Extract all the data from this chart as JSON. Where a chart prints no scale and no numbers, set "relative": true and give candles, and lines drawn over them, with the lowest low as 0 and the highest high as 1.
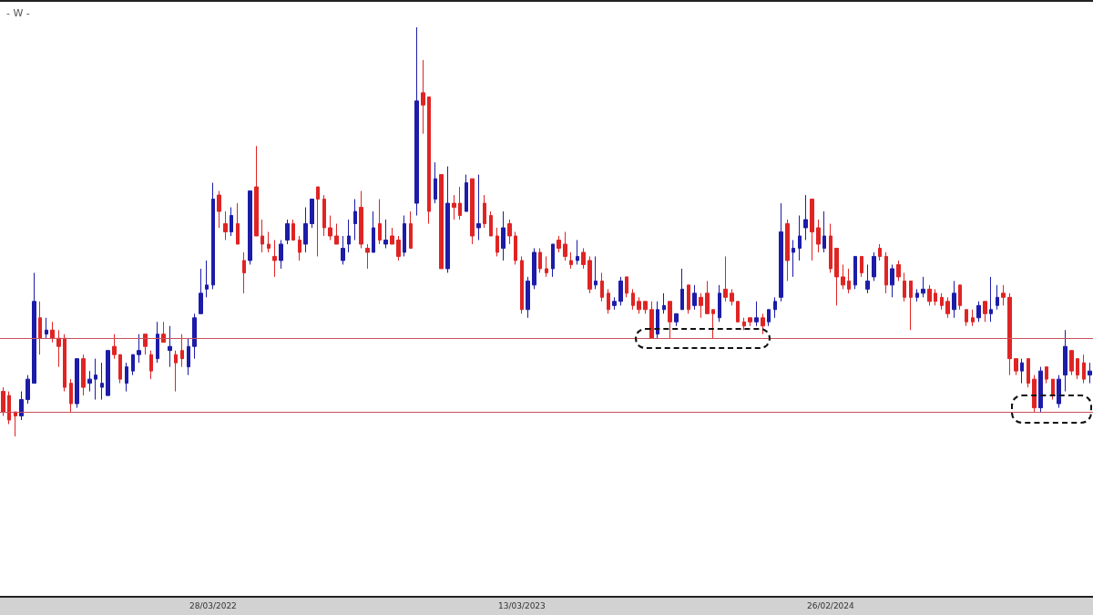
{
  "chart_data": {
    "type": "candlestick",
    "title": "- W -",
    "relative": true,
    "categories": [
      null,
      null,
      null,
      null,
      null,
      null,
      null,
      null,
      null,
      null,
      null,
      null,
      null,
      null,
      null,
      null,
      null,
      null,
      null,
      null,
      null,
      null,
      null,
      null,
      null,
      null,
      null,
      null,
      null,
      null,
      null,
      null,
      null,
      null,
      "28/03/2022",
      null,
      null,
      null,
      null,
      null,
      null,
      null,
      null,
      null,
      null,
      null,
      null,
      null,
      null,
      null,
      null,
      null,
      null,
      null,
      null,
      null,
      null,
      null,
      null,
      null,
      null,
      null,
      null,
      null,
      null,
      null,
      null,
      null,
      null,
      null,
      null,
      null,
      null,
      null,
      null,
      null,
      null,
      null,
      null,
      null,
      null,
      null,
      null,
      null,
      "13/03/2023",
      null,
      null,
      null,
      null,
      null,
      null,
      null,
      null,
      null,
      null,
      null,
      null,
      null,
      null,
      null,
      null,
      null,
      null,
      null,
      null,
      null,
      null,
      null,
      null,
      null,
      null,
      null,
      null,
      null,
      null,
      null,
      null,
      null,
      null,
      null,
      null,
      null,
      null,
      null,
      null,
      null,
      null,
      null,
      null,
      null,
      null,
      null,
      null,
      null,
      "26/02/2024",
      null,
      null,
      null,
      null,
      null,
      null,
      null,
      null,
      null,
      null,
      null,
      null,
      null,
      null,
      null,
      null,
      null,
      null,
      null,
      null,
      null,
      null,
      null,
      null,
      null,
      null,
      null,
      null,
      null,
      null,
      null,
      null,
      null,
      null,
      null,
      null,
      null,
      null,
      null,
      null,
      null,
      null
    ],
    "ohlc": [
      [
        0.11,
        0.12,
        0.05,
        0.06
      ],
      [
        0.1,
        0.11,
        0.03,
        0.04
      ],
      [
        0.06,
        0.06,
        0,
        0.05
      ],
      [
        0.05,
        0.11,
        0.04,
        0.09
      ],
      [
        0.09,
        0.15,
        0.08,
        0.14
      ],
      [
        0.13,
        0.4,
        0.13,
        0.33
      ],
      [
        0.29,
        0.33,
        0.2,
        0.24
      ],
      [
        0.25,
        0.29,
        0.24,
        0.26
      ],
      [
        0.26,
        0.28,
        0.23,
        0.24
      ],
      [
        0.24,
        0.26,
        0.17,
        0.22
      ],
      [
        0.24,
        0.25,
        0.11,
        0.12
      ],
      [
        0.13,
        0.14,
        0.06,
        0.08
      ],
      [
        0.08,
        0.19,
        0.07,
        0.19
      ],
      [
        0.19,
        0.2,
        0.1,
        0.12
      ],
      [
        0.13,
        0.16,
        0.11,
        0.14
      ],
      [
        0.14,
        0.19,
        0.09,
        0.15
      ],
      [
        0.12,
        0.18,
        0.09,
        0.13
      ],
      [
        0.1,
        0.21,
        0.1,
        0.21
      ],
      [
        0.22,
        0.25,
        0.19,
        0.2
      ],
      [
        0.2,
        0.2,
        0.13,
        0.14
      ],
      [
        0.13,
        0.18,
        0.11,
        0.17
      ],
      [
        0.16,
        0.2,
        0.15,
        0.2
      ],
      [
        0.2,
        0.25,
        0.18,
        0.21
      ],
      [
        0.25,
        0.25,
        0.2,
        0.22
      ],
      [
        0.2,
        0.21,
        0.14,
        0.16
      ],
      [
        0.19,
        0.28,
        0.18,
        0.25
      ],
      [
        0.25,
        0.28,
        0.23,
        0.23
      ],
      [
        0.21,
        0.27,
        0.17,
        0.22
      ],
      [
        0.2,
        0.21,
        0.11,
        0.18
      ],
      [
        0.21,
        0.25,
        0.17,
        0.19
      ],
      [
        0.17,
        0.24,
        0.15,
        0.22
      ],
      [
        0.22,
        0.3,
        0.19,
        0.29
      ],
      [
        0.3,
        0.41,
        0.3,
        0.35
      ],
      [
        0.36,
        0.43,
        0.34,
        0.37
      ],
      [
        0.37,
        0.62,
        0.36,
        0.58
      ],
      [
        0.59,
        0.6,
        0.51,
        0.55
      ],
      [
        0.52,
        0.55,
        0.48,
        0.5
      ],
      [
        0.5,
        0.56,
        0.49,
        0.54
      ],
      [
        0.52,
        0.57,
        0.47,
        0.47
      ],
      [
        0.43,
        0.45,
        0.35,
        0.4
      ],
      [
        0.43,
        0.6,
        0.42,
        0.6
      ],
      [
        0.61,
        0.71,
        0.49,
        0.49
      ],
      [
        0.49,
        0.53,
        0.45,
        0.47
      ],
      [
        0.47,
        0.5,
        0.45,
        0.46
      ],
      [
        0.44,
        0.48,
        0.39,
        0.43
      ],
      [
        0.43,
        0.48,
        0.41,
        0.47
      ],
      [
        0.48,
        0.53,
        0.47,
        0.52
      ],
      [
        0.52,
        0.53,
        0.48,
        0.48
      ],
      [
        0.48,
        0.49,
        0.43,
        0.45
      ],
      [
        0.47,
        0.56,
        0.45,
        0.52
      ],
      [
        0.52,
        0.58,
        0.51,
        0.58
      ],
      [
        0.61,
        0.61,
        0.44,
        0.58
      ],
      [
        0.58,
        0.59,
        0.49,
        0.51
      ],
      [
        0.51,
        0.54,
        0.48,
        0.49
      ],
      [
        0.49,
        0.52,
        0.47,
        0.47
      ],
      [
        0.43,
        0.49,
        0.42,
        0.46
      ],
      [
        0.47,
        0.53,
        0.45,
        0.49
      ],
      [
        0.52,
        0.58,
        0.48,
        0.55
      ],
      [
        0.56,
        0.6,
        0.46,
        0.47
      ],
      [
        0.46,
        0.47,
        0.41,
        0.45
      ],
      [
        0.45,
        0.55,
        0.45,
        0.51
      ],
      [
        0.52,
        0.58,
        0.47,
        0.48
      ],
      [
        0.47,
        0.53,
        0.46,
        0.48
      ],
      [
        0.49,
        0.51,
        0.47,
        0.47
      ],
      [
        0.48,
        0.49,
        0.43,
        0.44
      ],
      [
        0.45,
        0.54,
        0.44,
        0.52
      ],
      [
        0.52,
        0.55,
        0.46,
        0.46
      ],
      [
        0.57,
        1,
        0.54,
        0.82
      ],
      [
        0.84,
        0.92,
        0.74,
        0.81
      ],
      [
        0.83,
        0.83,
        0.52,
        0.55
      ],
      [
        0.58,
        0.67,
        0.57,
        0.63
      ],
      [
        0.64,
        0.64,
        0.41,
        0.41
      ],
      [
        0.41,
        0.66,
        0.4,
        0.57
      ],
      [
        0.57,
        0.59,
        0.53,
        0.56
      ],
      [
        0.57,
        0.61,
        0.53,
        0.54
      ],
      [
        0.55,
        0.64,
        0.55,
        0.62
      ],
      [
        0.63,
        0.63,
        0.47,
        0.49
      ],
      [
        0.51,
        0.64,
        0.48,
        0.52
      ],
      [
        0.57,
        0.59,
        0.51,
        0.52
      ],
      [
        0.54,
        0.55,
        0.49,
        0.49
      ],
      [
        0.49,
        0.51,
        0.44,
        0.45
      ],
      [
        0.46,
        0.55,
        0.43,
        0.51
      ],
      [
        0.52,
        0.53,
        0.47,
        0.49
      ],
      [
        0.49,
        0.5,
        0.42,
        0.43
      ],
      [
        0.43,
        0.44,
        0.3,
        0.31
      ],
      [
        0.31,
        0.39,
        0.29,
        0.38
      ],
      [
        0.37,
        0.46,
        0.36,
        0.45
      ],
      [
        0.45,
        0.46,
        0.4,
        0.41
      ],
      [
        0.41,
        0.44,
        0.39,
        0.4
      ],
      [
        0.41,
        0.47,
        0.39,
        0.47
      ],
      [
        0.48,
        0.49,
        0.45,
        0.46
      ],
      [
        0.47,
        0.5,
        0.43,
        0.44
      ],
      [
        0.43,
        0.45,
        0.41,
        0.42
      ],
      [
        0.43,
        0.48,
        0.42,
        0.44
      ],
      [
        0.45,
        0.46,
        0.41,
        0.42
      ],
      [
        0.43,
        0.44,
        0.35,
        0.36
      ],
      [
        0.37,
        0.44,
        0.36,
        0.38
      ],
      [
        0.38,
        0.4,
        0.33,
        0.34
      ],
      [
        0.35,
        0.36,
        0.3,
        0.31
      ],
      [
        0.32,
        0.34,
        0.31,
        0.33
      ],
      [
        0.33,
        0.39,
        0.32,
        0.38
      ],
      [
        0.39,
        0.39,
        0.34,
        0.35
      ],
      [
        0.35,
        0.36,
        0.31,
        0.32
      ],
      [
        0.33,
        0.34,
        0.3,
        0.31
      ],
      [
        0.33,
        0.33,
        0.3,
        0.31
      ],
      [
        0.31,
        0.33,
        0.24,
        0.24
      ],
      [
        0.25,
        0.33,
        0.24,
        0.31
      ],
      [
        0.31,
        0.35,
        0.3,
        0.32
      ],
      [
        0.33,
        0.33,
        0.24,
        0.28
      ],
      [
        0.28,
        0.3,
        0.27,
        0.3
      ],
      [
        0.31,
        0.41,
        0.31,
        0.36
      ],
      [
        0.37,
        0.37,
        0.3,
        0.31
      ],
      [
        0.32,
        0.37,
        0.31,
        0.35
      ],
      [
        0.34,
        0.35,
        0.29,
        0.32
      ],
      [
        0.35,
        0.38,
        0.3,
        0.3
      ],
      [
        0.31,
        0.31,
        0.24,
        0.3
      ],
      [
        0.29,
        0.37,
        0.28,
        0.35
      ],
      [
        0.36,
        0.44,
        0.33,
        0.34
      ],
      [
        0.35,
        0.36,
        0.32,
        0.33
      ],
      [
        0.33,
        0.33,
        0.28,
        0.28
      ],
      [
        0.28,
        0.29,
        0.26,
        0.27
      ],
      [
        0.29,
        0.29,
        0.27,
        0.28
      ],
      [
        0.28,
        0.33,
        0.27,
        0.29
      ],
      [
        0.29,
        0.3,
        0.25,
        0.27
      ],
      [
        0.28,
        0.31,
        0.27,
        0.31
      ],
      [
        0.31,
        0.34,
        0.29,
        0.33
      ],
      [
        0.34,
        0.57,
        0.33,
        0.5
      ],
      [
        0.52,
        0.53,
        0.38,
        0.43
      ],
      [
        0.45,
        0.48,
        0.39,
        0.46
      ],
      [
        0.46,
        0.54,
        0.43,
        0.49
      ],
      [
        0.51,
        0.59,
        0.48,
        0.53
      ],
      [
        0.58,
        0.58,
        0.43,
        0.5
      ],
      [
        0.51,
        0.53,
        0.45,
        0.47
      ],
      [
        0.46,
        0.55,
        0.45,
        0.49
      ],
      [
        0.49,
        0.52,
        0.4,
        0.41
      ],
      [
        0.46,
        0.46,
        0.32,
        0.39
      ],
      [
        0.39,
        0.42,
        0.36,
        0.37
      ],
      [
        0.38,
        0.41,
        0.35,
        0.36
      ],
      [
        0.37,
        0.44,
        0.36,
        0.44
      ],
      [
        0.44,
        0.44,
        0.39,
        0.4
      ],
      [
        0.36,
        0.42,
        0.35,
        0.38
      ],
      [
        0.39,
        0.45,
        0.38,
        0.44
      ],
      [
        0.46,
        0.47,
        0.43,
        0.44
      ],
      [
        0.44,
        0.45,
        0.35,
        0.37
      ],
      [
        0.37,
        0.42,
        0.34,
        0.41
      ],
      [
        0.42,
        0.43,
        0.38,
        0.39
      ],
      [
        0.38,
        0.4,
        0.33,
        0.34
      ],
      [
        0.38,
        0.38,
        0.26,
        0.34
      ],
      [
        0.34,
        0.36,
        0.33,
        0.35
      ],
      [
        0.35,
        0.39,
        0.34,
        0.36
      ],
      [
        0.36,
        0.37,
        0.32,
        0.33
      ],
      [
        0.35,
        0.36,
        0.32,
        0.33
      ],
      [
        0.34,
        0.35,
        0.31,
        0.32
      ],
      [
        0.33,
        0.34,
        0.29,
        0.3
      ],
      [
        0.31,
        0.38,
        0.29,
        0.35
      ],
      [
        0.37,
        0.37,
        0.31,
        0.32
      ],
      [
        0.31,
        0.31,
        0.27,
        0.28
      ],
      [
        0.29,
        0.31,
        0.27,
        0.28
      ],
      [
        0.29,
        0.33,
        0.28,
        0.32
      ],
      [
        0.33,
        0.33,
        0.28,
        0.3
      ],
      [
        0.3,
        0.39,
        0.28,
        0.31
      ],
      [
        0.32,
        0.37,
        0.31,
        0.34
      ],
      [
        0.35,
        0.37,
        0.32,
        0.34
      ],
      [
        0.34,
        0.35,
        0.15,
        0.19
      ],
      [
        0.19,
        0.19,
        0.15,
        0.16
      ],
      [
        0.16,
        0.19,
        0.13,
        0.18
      ],
      [
        0.19,
        0.19,
        0.12,
        0.13
      ],
      [
        0.14,
        0.15,
        0.06,
        0.07
      ],
      [
        0.07,
        0.17,
        0.06,
        0.16
      ],
      [
        0.17,
        0.17,
        0.13,
        0.14
      ],
      [
        0.14,
        0.14,
        0.09,
        0.1
      ],
      [
        0.08,
        0.15,
        0.07,
        0.14
      ],
      [
        0.15,
        0.26,
        0.11,
        0.22
      ],
      [
        0.21,
        0.21,
        0.15,
        0.16
      ],
      [
        0.19,
        0.19,
        0.14,
        0.15
      ],
      [
        0.18,
        0.2,
        0.13,
        0.14
      ],
      [
        0.15,
        0.18,
        0.13,
        0.16
      ]
    ],
    "colors": [
      "#e02424",
      "#e02424",
      "#e02424",
      "#1c1ca8",
      "#1c1ca8",
      "#1c1ca8",
      "#e02424",
      "#1c1ca8",
      "#e02424",
      "#e02424",
      "#e02424",
      "#e02424",
      "#1c1ca8",
      "#e02424",
      "#1c1ca8",
      "#1c1ca8",
      "#1c1ca8",
      "#1c1ca8",
      "#e02424",
      "#e02424",
      "#1c1ca8",
      "#1c1ca8",
      "#1c1ca8",
      "#e02424",
      "#e02424",
      "#1c1ca8",
      "#e02424",
      "#1c1ca8",
      "#e02424",
      "#e02424",
      "#1c1ca8",
      "#1c1ca8",
      "#1c1ca8",
      "#1c1ca8",
      "#1c1ca8",
      "#e02424",
      "#e02424",
      "#1c1ca8",
      "#e02424",
      "#e02424",
      "#1c1ca8",
      "#e02424",
      "#e02424",
      "#e02424",
      "#e02424",
      "#1c1ca8",
      "#1c1ca8",
      "#e02424",
      "#e02424",
      "#1c1ca8",
      "#1c1ca8",
      "#e02424",
      "#e02424",
      "#e02424",
      "#e02424",
      "#1c1ca8",
      "#1c1ca8",
      "#1c1ca8",
      "#e02424",
      "#e02424",
      "#1c1ca8",
      "#e02424",
      "#1c1ca8",
      "#e02424",
      "#e02424",
      "#1c1ca8",
      "#e02424",
      "#1c1ca8",
      "#e02424",
      "#e02424",
      "#1c1ca8",
      "#e02424",
      "#1c1ca8",
      "#e02424",
      "#e02424",
      "#1c1ca8",
      "#e02424",
      "#1c1ca8",
      "#e02424",
      "#e02424",
      "#e02424",
      "#1c1ca8",
      "#e02424",
      "#e02424",
      "#e02424",
      "#1c1ca8",
      "#1c1ca8",
      "#e02424",
      "#e02424",
      "#1c1ca8",
      "#e02424",
      "#e02424",
      "#e02424",
      "#1c1ca8",
      "#e02424",
      "#e02424",
      "#1c1ca8",
      "#e02424",
      "#e02424",
      "#1c1ca8",
      "#1c1ca8",
      "#e02424",
      "#e02424",
      "#e02424",
      "#e02424",
      "#e02424",
      "#1c1ca8",
      "#1c1ca8",
      "#e02424",
      "#1c1ca8",
      "#1c1ca8",
      "#e02424",
      "#1c1ca8",
      "#e02424",
      "#e02424",
      "#e02424",
      "#1c1ca8",
      "#e02424",
      "#e02424",
      "#e02424",
      "#e02424",
      "#e02424",
      "#1c1ca8",
      "#e02424",
      "#1c1ca8",
      "#1c1ca8",
      "#1c1ca8",
      "#e02424",
      "#1c1ca8",
      "#1c1ca8",
      "#1c1ca8",
      "#e02424",
      "#e02424",
      "#1c1ca8",
      "#e02424",
      "#e02424",
      "#e02424",
      "#e02424",
      "#1c1ca8",
      "#e02424",
      "#1c1ca8",
      "#1c1ca8",
      "#e02424",
      "#e02424",
      "#1c1ca8",
      "#e02424",
      "#e02424",
      "#e02424",
      "#1c1ca8",
      "#1c1ca8",
      "#e02424",
      "#e02424",
      "#e02424",
      "#e02424",
      "#1c1ca8",
      "#e02424",
      "#e02424",
      "#e02424",
      "#1c1ca8",
      "#e02424",
      "#1c1ca8",
      "#1c1ca8",
      "#e02424",
      "#e02424",
      "#e02424",
      "#1c1ca8",
      "#e02424",
      "#e02424",
      "#1c1ca8",
      "#e02424",
      "#e02424",
      "#1c1ca8",
      "#1c1ca8",
      "#e02424",
      "#e02424",
      "#e02424",
      "#1c1ca8"
    ],
    "ref_lines": [
      {
        "axis": "y",
        "value": 0.24,
        "color": "#c8505c"
      },
      {
        "axis": "y",
        "value": 0.06,
        "color": "#c8505c"
      }
    ]
  }
}
